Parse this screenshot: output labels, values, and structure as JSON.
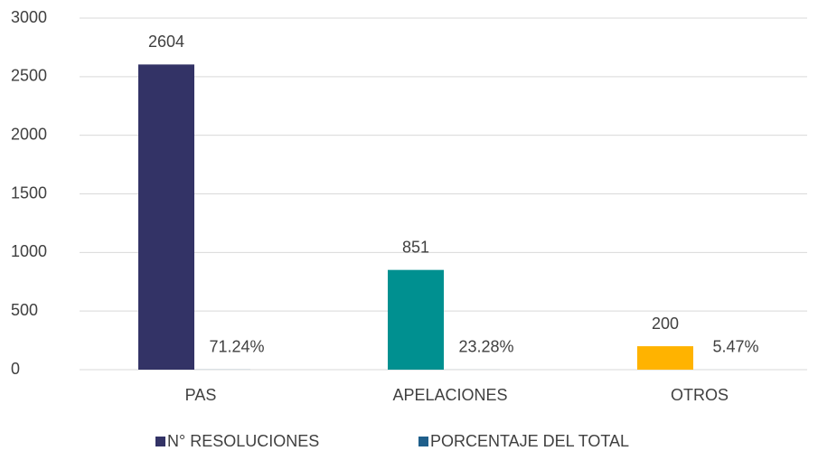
{
  "chart_data": {
    "type": "bar",
    "categories": [
      "PAS",
      "APELACIONES",
      "OTROS"
    ],
    "series": [
      {
        "name": "N° RESOLUCIONES",
        "color": "#333366",
        "colors": [
          "#333366",
          "#009090",
          "#ffb300"
        ],
        "values": [
          2604,
          851,
          200
        ]
      },
      {
        "name": "PORCENTAJE DEL TOTAL",
        "color": "#1f5f8b",
        "values": [
          0.7124,
          0.2328,
          0.0547
        ],
        "value_labels": [
          "71.24%",
          "23.28%",
          "5.47%"
        ]
      }
    ],
    "ylim": [
      0,
      3000
    ],
    "yticks": [
      0,
      500,
      1000,
      1500,
      2000,
      2500,
      3000
    ],
    "grid": true,
    "legend": "bottom"
  }
}
